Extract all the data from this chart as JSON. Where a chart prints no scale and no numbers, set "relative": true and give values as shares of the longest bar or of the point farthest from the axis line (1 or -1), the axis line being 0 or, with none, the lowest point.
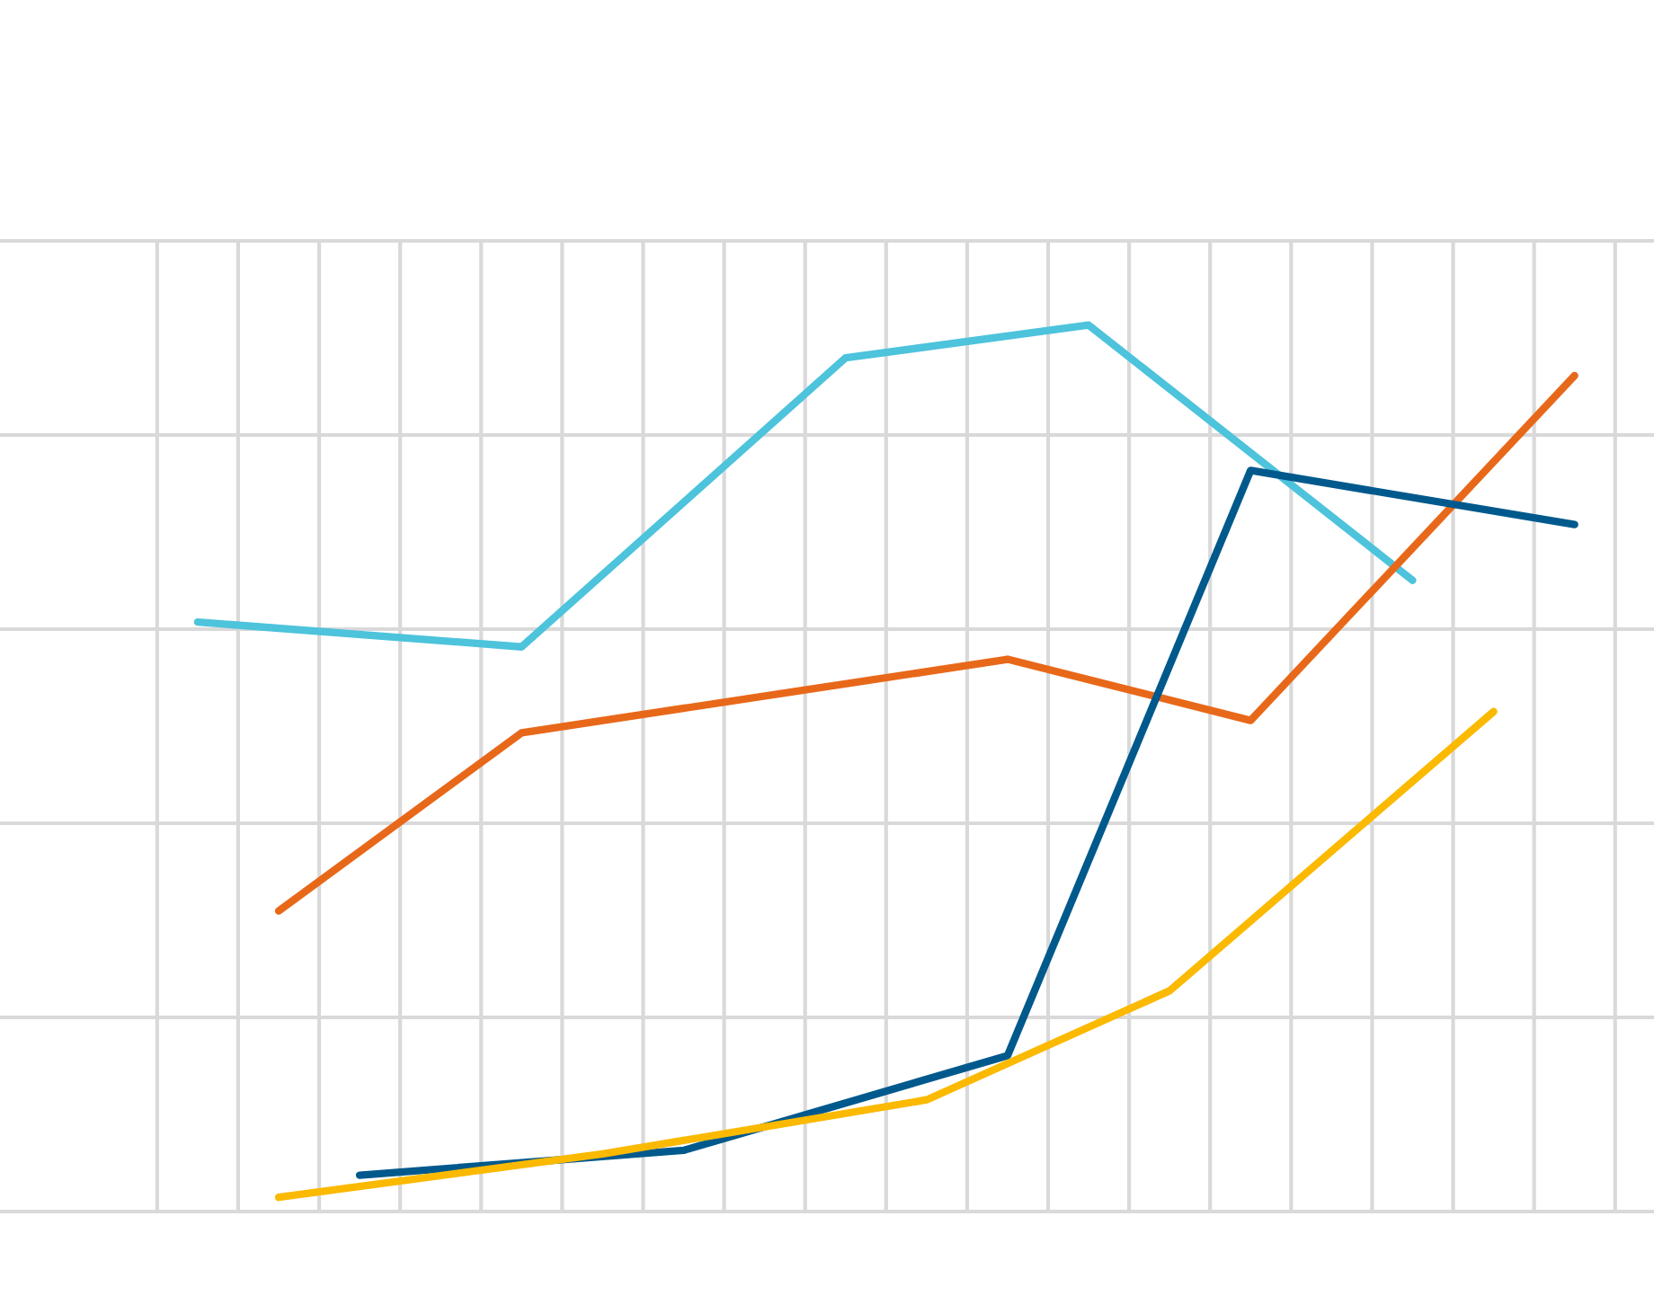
{
  "chart_data": {
    "type": "line",
    "relative": true,
    "grid": true,
    "tick_labels": false,
    "categories": [
      null,
      null,
      null,
      null,
      null,
      null,
      null,
      null,
      null,
      null,
      null,
      null,
      null,
      null,
      null,
      null,
      null,
      null
    ],
    "series": [
      {
        "color": "#4dc3dc",
        "values": [
          0.665,
          null,
          null,
          null,
          0.637,
          null,
          null,
          null,
          0.963,
          null,
          null,
          1.0,
          null,
          null,
          null,
          0.712,
          null,
          null
        ]
      },
      {
        "color": "#e8681a",
        "values": [
          null,
          0.339,
          null,
          null,
          0.54,
          null,
          null,
          null,
          null,
          null,
          0.623,
          null,
          null,
          0.554,
          null,
          null,
          null,
          0.943
        ]
      },
      {
        "color": "#00598c",
        "values": [
          null,
          null,
          0.041,
          null,
          null,
          null,
          0.069,
          null,
          null,
          null,
          0.176,
          null,
          null,
          0.836,
          null,
          null,
          null,
          0.775
        ]
      },
      {
        "color": "#fbb900",
        "values": [
          null,
          0.016,
          null,
          null,
          null,
          0.065,
          null,
          null,
          null,
          0.126,
          null,
          null,
          0.249,
          null,
          null,
          null,
          0.564,
          null
        ]
      }
    ]
  }
}
